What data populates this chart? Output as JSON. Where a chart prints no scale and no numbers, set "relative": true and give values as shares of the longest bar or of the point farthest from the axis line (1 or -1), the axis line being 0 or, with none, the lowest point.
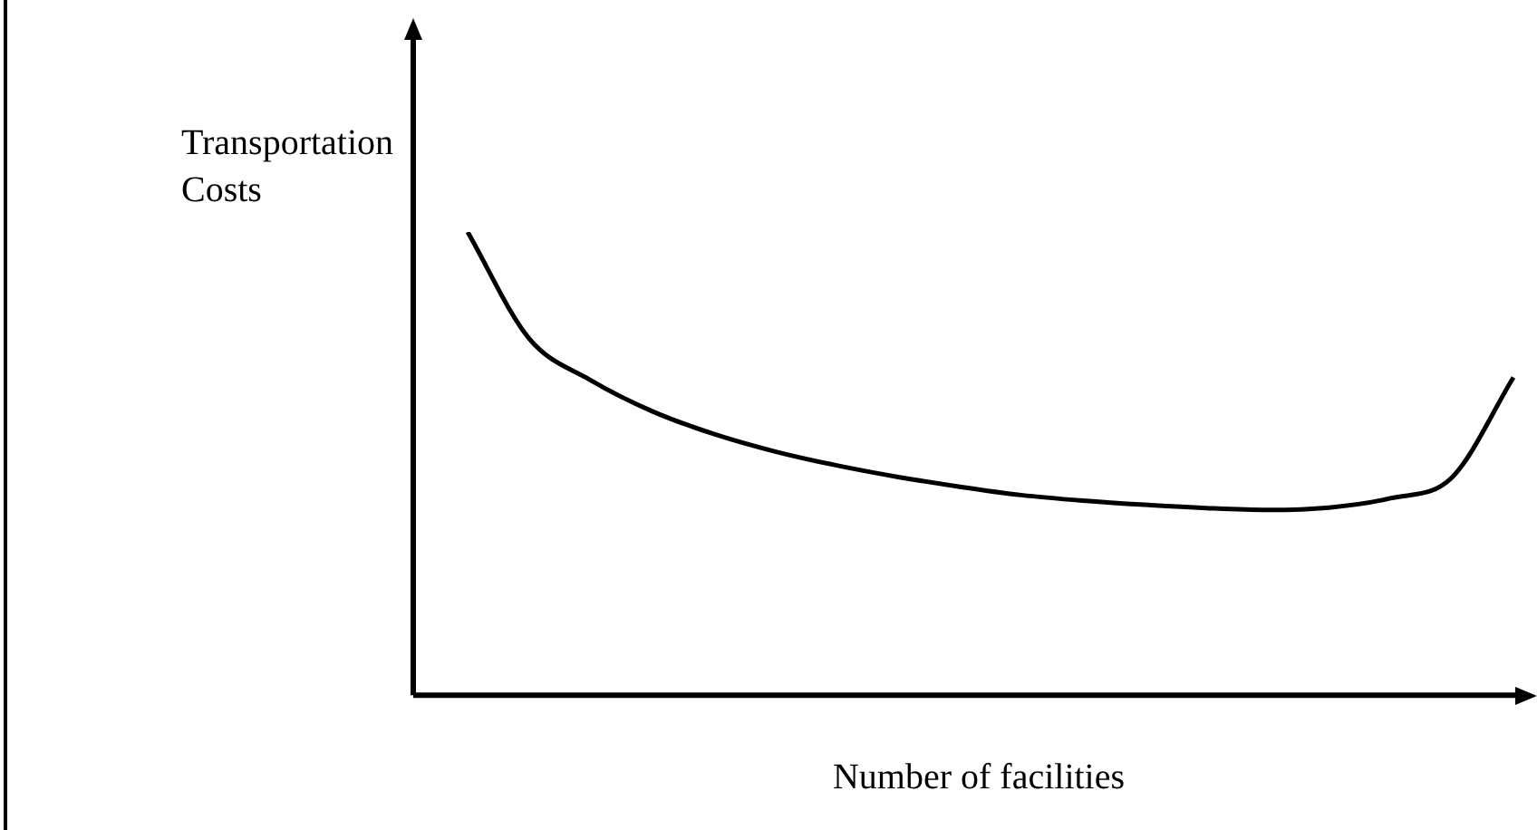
{
  "chart_data": {
    "type": "line",
    "relative": true,
    "xlabel": "Number of facilities",
    "ylabel": "Transportation Costs",
    "color": "#000000",
    "marker": "none",
    "line_style": "solid",
    "legend": false,
    "categories": [
      null,
      null,
      null,
      null,
      null,
      null,
      null,
      null,
      null,
      null,
      null,
      null,
      null,
      null,
      null,
      null,
      null,
      null
    ],
    "values": [
      1.0,
      0.77,
      0.68,
      0.613,
      0.564,
      0.526,
      0.496,
      0.471,
      0.45,
      0.432,
      0.42,
      0.411,
      0.404,
      0.4,
      0.405,
      0.425,
      0.47,
      0.686
    ]
  }
}
